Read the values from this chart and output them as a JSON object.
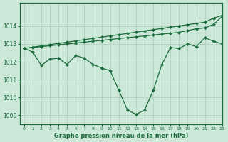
{
  "background_color": "#cce8d8",
  "grid_color": "#aaccbb",
  "line_color": "#1a6b3a",
  "title": "Graphe pression niveau de la mer (hPa)",
  "xlim": [
    -0.5,
    23
  ],
  "ylim": [
    1008.5,
    1015.3
  ],
  "yticks": [
    1009,
    1010,
    1011,
    1012,
    1013,
    1014
  ],
  "xticks": [
    0,
    1,
    2,
    3,
    4,
    5,
    6,
    7,
    8,
    9,
    10,
    11,
    12,
    13,
    14,
    15,
    16,
    17,
    18,
    19,
    20,
    21,
    22,
    23
  ],
  "series": [
    [
      1012.75,
      1012.82,
      1012.89,
      1012.96,
      1013.03,
      1013.1,
      1013.17,
      1013.24,
      1013.31,
      1013.38,
      1013.45,
      1013.52,
      1013.59,
      1013.66,
      1013.73,
      1013.8,
      1013.87,
      1013.94,
      1014.01,
      1014.08,
      1014.15,
      1014.22,
      1014.45,
      1014.6
    ],
    [
      1012.75,
      1012.8,
      1012.85,
      1012.9,
      1012.95,
      1013.0,
      1013.05,
      1013.1,
      1013.15,
      1013.2,
      1013.25,
      1013.3,
      1013.35,
      1013.4,
      1013.45,
      1013.5,
      1013.55,
      1013.6,
      1013.65,
      1013.75,
      1013.85,
      1013.9,
      1014.1,
      1014.55
    ],
    [
      1012.75,
      1012.55,
      1011.8,
      1012.15,
      1012.2,
      1011.85,
      1012.35,
      1012.2,
      1011.85,
      1011.65,
      1011.5,
      1010.4,
      1009.3,
      1009.05,
      1009.3,
      1010.4,
      1011.85,
      1012.8,
      1012.75,
      1013.0,
      1012.85,
      1013.35,
      1013.15,
      1013.0
    ]
  ]
}
